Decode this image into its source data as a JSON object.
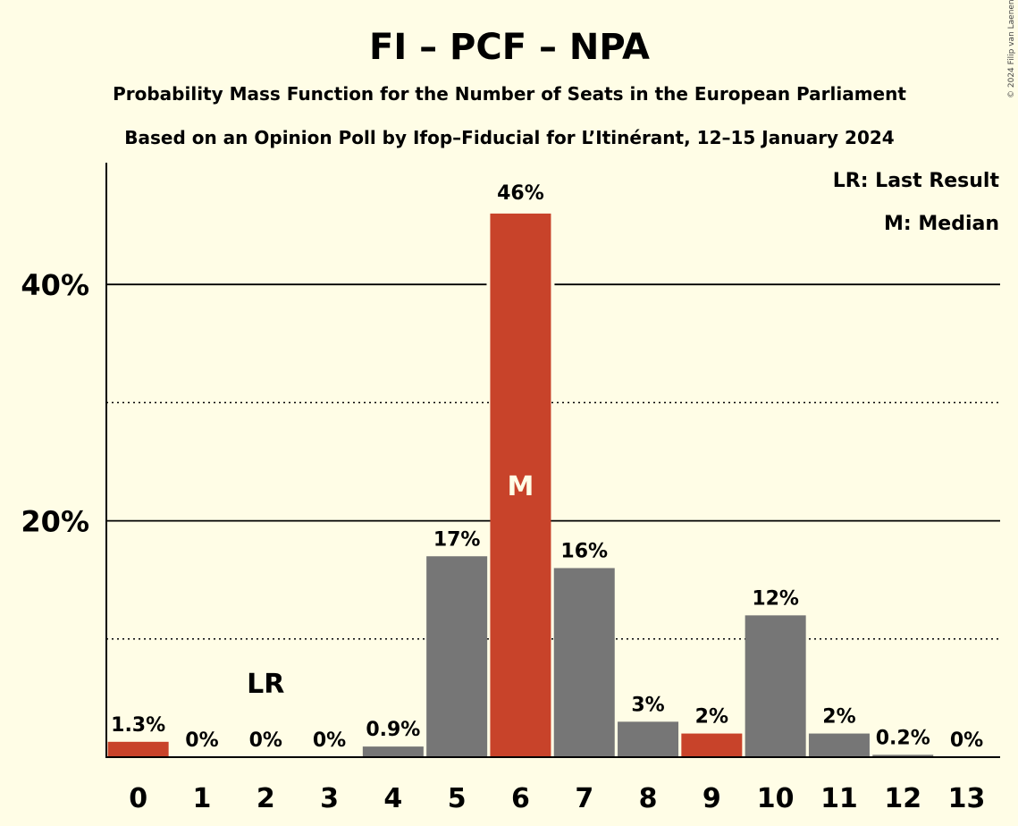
{
  "chart_data": {
    "type": "bar",
    "title": "FI – PCF – NPA",
    "subtitle_1": "Probability Mass Function for the Number of Seats in the European Parliament",
    "subtitle_2": "Based on an Opinion Poll by Ifop–Fiducial for L’Itinérant, 12–15 January 2024",
    "categories": [
      "0",
      "1",
      "2",
      "3",
      "4",
      "5",
      "6",
      "7",
      "8",
      "9",
      "10",
      "11",
      "12",
      "13"
    ],
    "values": [
      1.3,
      0,
      0,
      0,
      0.9,
      17,
      46,
      16,
      3,
      2,
      12,
      2,
      0.2,
      0
    ],
    "value_labels": [
      "1.3%",
      "0%",
      "0%",
      "0%",
      "0.9%",
      "17%",
      "46%",
      "16%",
      "3%",
      "2%",
      "12%",
      "2%",
      "0.2%",
      "0%"
    ],
    "highlighted": [
      0,
      6,
      9
    ],
    "ylim": [
      0,
      50
    ],
    "yticks": [
      {
        "value": 20,
        "label": "20%"
      },
      {
        "value": 40,
        "label": "40%"
      }
    ],
    "dotted_gridlines": [
      10,
      30
    ],
    "last_result_seat": 2,
    "last_result_label": "LR",
    "median_seat": 6,
    "median_label": "M",
    "legend": [
      "LR: Last Result",
      "M: Median"
    ],
    "copyright": "© 2024 Filip van Laenen",
    "colors": {
      "background": "#FFFDE6",
      "highlight": "#C8432A",
      "bar": "#767676",
      "axis": "#000000"
    }
  }
}
